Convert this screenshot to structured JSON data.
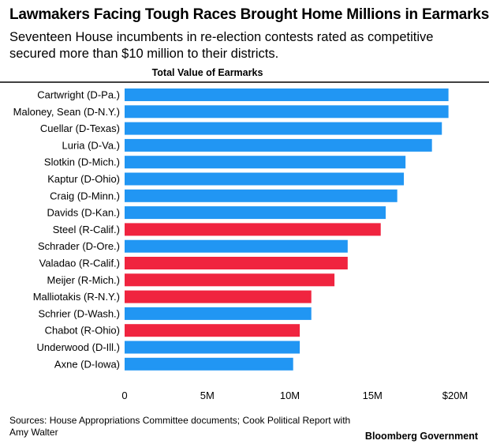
{
  "header": {
    "title": "Lawmakers Facing Tough Races Brought Home Millions in Earmarks",
    "subtitle": "Seventeen House incumbents in re-election contests rated as competitive secured more than $10 million to their districts."
  },
  "footer": {
    "source": "Sources: House Appropriations Committee documents; Cook Political Report with Amy Walter",
    "brand": "Bloomberg Government"
  },
  "chart_data": {
    "type": "bar",
    "orientation": "horizontal",
    "title": "Total Value of Earmarks",
    "xlabel": "",
    "ylabel": "",
    "xlim": [
      0,
      20
    ],
    "ticks": [
      0,
      5,
      10,
      15,
      20
    ],
    "tick_labels": [
      "0",
      "5M",
      "10M",
      "15M",
      "$20M"
    ],
    "grid": false,
    "colors": {
      "D": "#2196f3",
      "R": "#f0243f"
    },
    "categories": [
      "Cartwright (D-Pa.)",
      "Maloney, Sean (D-N.Y.)",
      "Cuellar (D-Texas)",
      "Luria (D-Va.)",
      "Slotkin (D-Mich.)",
      "Kaptur (D-Ohio)",
      "Craig (D-Minn.)",
      "Davids (D-Kan.)",
      "Steel (R-Calif.)",
      "Schrader (D-Ore.)",
      "Valadao (R-Calif.)",
      "Meijer (R-Mich.)",
      "Malliotakis (R-N.Y.)",
      "Schrier (D-Wash.)",
      "Chabot (R-Ohio)",
      "Underwood (D-Ill.)",
      "Axne (D-Iowa)"
    ],
    "values": [
      19.6,
      19.6,
      19.2,
      18.6,
      17.0,
      16.9,
      16.5,
      15.8,
      15.5,
      13.5,
      13.5,
      12.7,
      11.3,
      11.3,
      10.6,
      10.6,
      10.2
    ],
    "party": [
      "D",
      "D",
      "D",
      "D",
      "D",
      "D",
      "D",
      "D",
      "R",
      "D",
      "R",
      "R",
      "R",
      "D",
      "R",
      "D",
      "D"
    ]
  }
}
